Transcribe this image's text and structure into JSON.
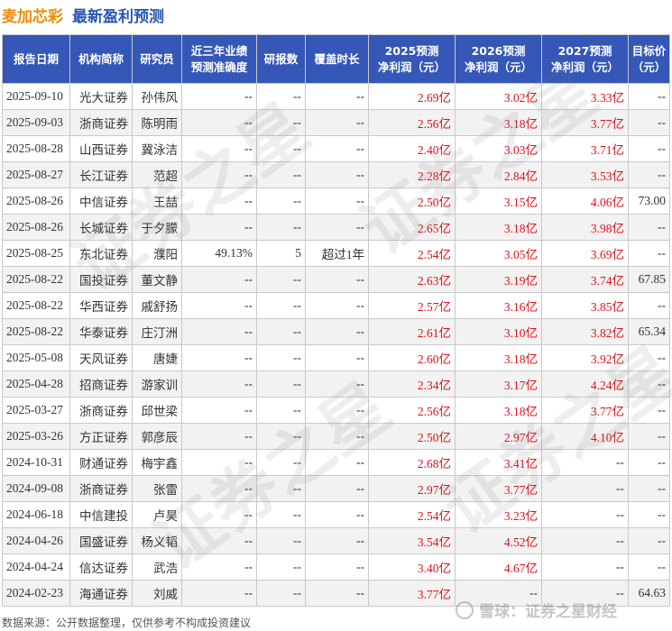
{
  "title": {
    "company": "麦加芯彩",
    "heading": "最新盈利预测"
  },
  "columns": [
    "报告日期",
    "机构简称",
    "研究员",
    "近三年业绩预测准确度",
    "研报数",
    "覆盖时长",
    "2025预测净利润（元）",
    "2026预测净利润（元）",
    "2027预测净利润（元）",
    "目标价（元）"
  ],
  "header_lines": [
    [
      "报告日期",
      ""
    ],
    [
      "机构简称",
      ""
    ],
    [
      "研究员",
      ""
    ],
    [
      "近三年业绩",
      "预测准确度"
    ],
    [
      "研报数",
      ""
    ],
    [
      "覆盖时长",
      ""
    ],
    [
      "2025预测",
      "净利润（元）"
    ],
    [
      "2026预测",
      "净利润（元）"
    ],
    [
      "2027预测",
      "净利润（元）"
    ],
    [
      "目标价",
      "（元）"
    ]
  ],
  "rows": [
    [
      "2025-09-10",
      "光大证券",
      "孙伟风",
      "--",
      "--",
      "--",
      "2.69亿",
      "3.02亿",
      "3.33亿",
      "--"
    ],
    [
      "2025-09-03",
      "浙商证券",
      "陈明雨",
      "--",
      "--",
      "--",
      "2.56亿",
      "3.18亿",
      "3.77亿",
      "--"
    ],
    [
      "2025-08-28",
      "山西证券",
      "冀泳洁",
      "--",
      "--",
      "--",
      "2.40亿",
      "3.03亿",
      "3.71亿",
      "--"
    ],
    [
      "2025-08-27",
      "长江证券",
      "范超",
      "--",
      "--",
      "--",
      "2.28亿",
      "2.84亿",
      "3.53亿",
      "--"
    ],
    [
      "2025-08-26",
      "中信证券",
      "王喆",
      "--",
      "--",
      "--",
      "2.50亿",
      "3.15亿",
      "4.06亿",
      "73.00"
    ],
    [
      "2025-08-26",
      "长城证券",
      "于夕朦",
      "--",
      "--",
      "--",
      "2.65亿",
      "3.18亿",
      "3.98亿",
      "--"
    ],
    [
      "2025-08-25",
      "东北证券",
      "濮阳",
      "49.13%",
      "5",
      "超过1年",
      "2.54亿",
      "3.05亿",
      "3.69亿",
      "--"
    ],
    [
      "2025-08-22",
      "国投证券",
      "董文静",
      "--",
      "--",
      "--",
      "2.63亿",
      "3.19亿",
      "3.74亿",
      "67.85"
    ],
    [
      "2025-08-22",
      "华西证券",
      "戚舒扬",
      "--",
      "--",
      "--",
      "2.57亿",
      "3.16亿",
      "3.85亿",
      "--"
    ],
    [
      "2025-08-22",
      "华泰证券",
      "庄汀洲",
      "--",
      "--",
      "--",
      "2.61亿",
      "3.10亿",
      "3.82亿",
      "65.34"
    ],
    [
      "2025-05-08",
      "天风证券",
      "唐婕",
      "--",
      "--",
      "--",
      "2.60亿",
      "3.18亿",
      "3.92亿",
      "--"
    ],
    [
      "2025-04-28",
      "招商证券",
      "游家训",
      "--",
      "--",
      "--",
      "2.34亿",
      "3.17亿",
      "4.24亿",
      "--"
    ],
    [
      "2025-03-27",
      "浙商证券",
      "邱世梁",
      "--",
      "--",
      "--",
      "2.56亿",
      "3.18亿",
      "3.77亿",
      "--"
    ],
    [
      "2025-03-26",
      "方正证券",
      "郭彦辰",
      "--",
      "--",
      "--",
      "2.50亿",
      "2.97亿",
      "4.10亿",
      "--"
    ],
    [
      "2024-10-31",
      "财通证券",
      "梅宇鑫",
      "--",
      "--",
      "--",
      "2.68亿",
      "3.41亿",
      "--",
      "--"
    ],
    [
      "2024-09-08",
      "浙商证券",
      "张雷",
      "--",
      "--",
      "--",
      "2.97亿",
      "3.77亿",
      "--",
      "--"
    ],
    [
      "2024-06-18",
      "中信建投",
      "卢昊",
      "--",
      "--",
      "--",
      "2.54亿",
      "3.23亿",
      "--",
      "--"
    ],
    [
      "2024-04-26",
      "国盛证券",
      "杨义韬",
      "--",
      "--",
      "--",
      "3.54亿",
      "4.52亿",
      "--",
      "--"
    ],
    [
      "2024-04-24",
      "信达证券",
      "武浩",
      "--",
      "--",
      "--",
      "3.40亿",
      "4.67亿",
      "--",
      "--"
    ],
    [
      "2024-02-23",
      "海通证券",
      "刘威",
      "--",
      "--",
      "--",
      "3.77亿",
      "--",
      "--",
      "64.63"
    ]
  ],
  "footer": "数据来源：公开数据整理，仅供参考不构成投资建议",
  "watermark": "证券之星",
  "brand": {
    "name": "雪球：证券之星财经"
  },
  "colors": {
    "header_bg": "#3457b8",
    "title_company": "#f08a00",
    "title_heading": "#2a56b3",
    "forecast_red": "#e0121b",
    "row_alt": "#f2f2f2"
  }
}
